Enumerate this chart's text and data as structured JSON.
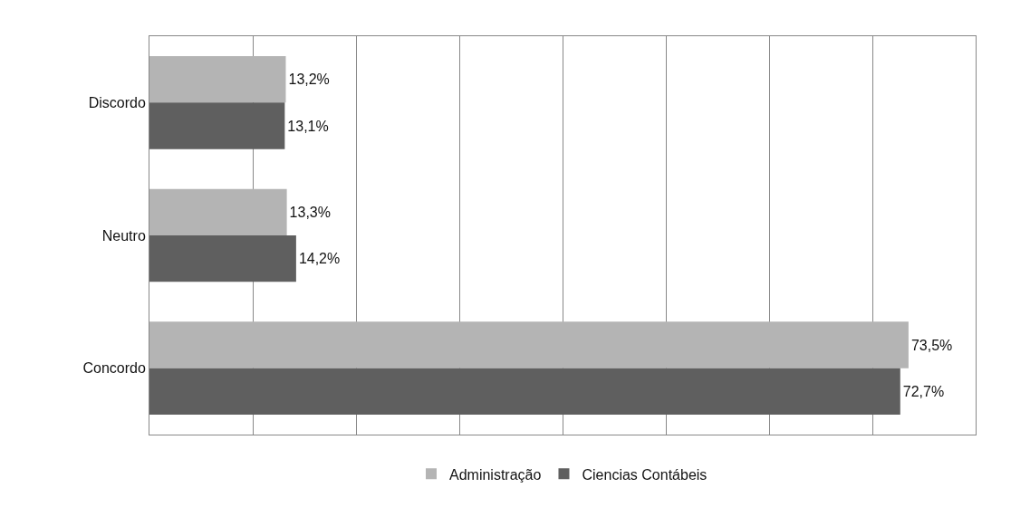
{
  "chart_data": {
    "type": "bar",
    "orientation": "horizontal",
    "categories": [
      "Discordo",
      "Neutro",
      "Concordo"
    ],
    "series": [
      {
        "name": "Administração",
        "color": "#b4b4b4",
        "values": [
          13.2,
          13.3,
          73.5
        ],
        "value_labels": [
          "13,2%",
          "13,3%",
          "73,5%"
        ]
      },
      {
        "name": "Ciencias Contábeis",
        "color": "#5f5f5f",
        "values": [
          13.1,
          14.2,
          72.7
        ],
        "value_labels": [
          "13,1%",
          "14,2%",
          "72,7%"
        ]
      }
    ],
    "xlim": [
      0,
      80
    ],
    "xticks": [
      {
        "value": 0,
        "label": null
      },
      {
        "value": 10,
        "label": null
      },
      {
        "value": 20,
        "label": null
      },
      {
        "value": 30,
        "label": null
      },
      {
        "value": 40,
        "label": null
      },
      {
        "value": 50,
        "label": null
      },
      {
        "value": 60,
        "label": null
      },
      {
        "value": 70,
        "label": null
      },
      {
        "value": 80,
        "label": null
      }
    ],
    "grid": "x",
    "legend": "bottom",
    "tick_labels": "y"
  }
}
